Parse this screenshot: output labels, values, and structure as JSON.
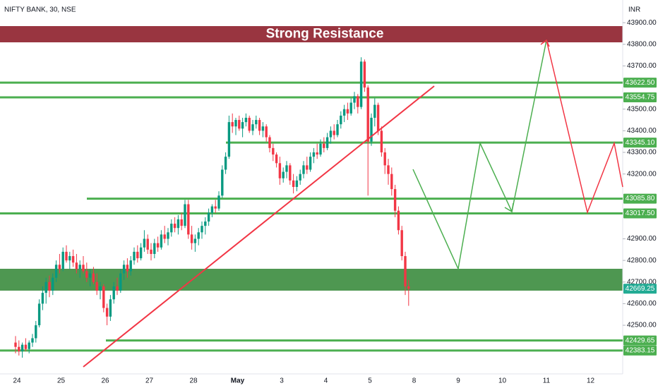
{
  "chart_data": {
    "type": "candlestick",
    "title": "NIFTY BANK, 30, NSE",
    "currency": "INR",
    "resistance_label": "Strong Resistance",
    "up_color": "#089981",
    "down_color": "#f23645",
    "level_color": "#4caf50",
    "last_color": "#22ab94",
    "ylim": [
      42275,
      44005
    ],
    "yticks": [
      {
        "value": 43900,
        "label": "43900.00"
      },
      {
        "value": 43800,
        "label": "43800.00"
      },
      {
        "value": 43700,
        "label": "43700.00"
      },
      {
        "value": 43500,
        "label": "43500.00"
      },
      {
        "value": 43400,
        "label": "43400.00"
      },
      {
        "value": 43300,
        "label": "43300.00"
      },
      {
        "value": 43200,
        "label": "43200.00"
      },
      {
        "value": 42900,
        "label": "42900.00"
      },
      {
        "value": 42800,
        "label": "42800.00"
      },
      {
        "value": 42700,
        "label": "42700.00"
      },
      {
        "value": 42600,
        "label": "42600.00"
      },
      {
        "value": 42500,
        "label": "42500.00"
      }
    ],
    "x_labels": [
      "24",
      "25",
      "26",
      "27",
      "28",
      "May",
      "3",
      "4",
      "5",
      "8",
      "9",
      "10",
      "11",
      "12"
    ],
    "levels": [
      {
        "value": 43622.5,
        "label": "43622.50"
      },
      {
        "value": 43554.75,
        "label": "43554.75"
      },
      {
        "value": 43345.1,
        "label": "43345.10"
      },
      {
        "value": 43085.8,
        "label": "43085.80"
      },
      {
        "value": 43017.5,
        "label": "43017.50"
      },
      {
        "value": 42429.65,
        "label": "42429.65"
      },
      {
        "value": 42383.15,
        "label": "42383.15"
      }
    ],
    "candles": [
      [
        42420,
        42450,
        42370,
        42400
      ],
      [
        42400,
        42430,
        42360,
        42380
      ],
      [
        42380,
        42420,
        42350,
        42410
      ],
      [
        42410,
        42440,
        42380,
        42390
      ],
      [
        42390,
        42430,
        42370,
        42420
      ],
      [
        42420,
        42460,
        42400,
        42440
      ],
      [
        42440,
        42520,
        42420,
        42500
      ],
      [
        42500,
        42620,
        42490,
        42600
      ],
      [
        42600,
        42680,
        42570,
        42650
      ],
      [
        42650,
        42720,
        42600,
        42700
      ],
      [
        42700,
        42730,
        42630,
        42660
      ],
      [
        42660,
        42740,
        42640,
        42720
      ],
      [
        42720,
        42800,
        42700,
        42780
      ],
      [
        42780,
        42830,
        42740,
        42760
      ],
      [
        42760,
        42860,
        42750,
        42840
      ],
      [
        42840,
        42870,
        42790,
        42800
      ],
      [
        42800,
        42840,
        42760,
        42820
      ],
      [
        42820,
        42850,
        42770,
        42790
      ],
      [
        42790,
        42830,
        42740,
        42760
      ],
      [
        42760,
        42800,
        42720,
        42780
      ],
      [
        42780,
        42820,
        42740,
        42750
      ],
      [
        42750,
        42790,
        42700,
        42720
      ],
      [
        42720,
        42760,
        42680,
        42740
      ],
      [
        42740,
        42770,
        42690,
        42700
      ],
      [
        42700,
        42740,
        42640,
        42660
      ],
      [
        42660,
        42700,
        42620,
        42680
      ],
      [
        42680,
        42690,
        42560,
        42580
      ],
      [
        42580,
        42600,
        42500,
        42540
      ],
      [
        42540,
        42640,
        42520,
        42620
      ],
      [
        42620,
        42700,
        42600,
        42680
      ],
      [
        42680,
        42720,
        42640,
        42660
      ],
      [
        42660,
        42760,
        42650,
        42740
      ],
      [
        42740,
        42800,
        42710,
        42780
      ],
      [
        42780,
        42810,
        42720,
        42750
      ],
      [
        42750,
        42820,
        42730,
        42800
      ],
      [
        42800,
        42860,
        42780,
        42840
      ],
      [
        42840,
        42870,
        42790,
        42810
      ],
      [
        42810,
        42880,
        42800,
        42860
      ],
      [
        42860,
        42940,
        42840,
        42900
      ],
      [
        42900,
        42920,
        42830,
        42850
      ],
      [
        42850,
        42880,
        42800,
        42830
      ],
      [
        42830,
        42900,
        42810,
        42880
      ],
      [
        42880,
        42910,
        42840,
        42860
      ],
      [
        42860,
        42940,
        42850,
        42920
      ],
      [
        42920,
        42960,
        42880,
        42900
      ],
      [
        42900,
        42950,
        42870,
        42930
      ],
      [
        42930,
        42990,
        42910,
        42970
      ],
      [
        42970,
        43000,
        42930,
        42950
      ],
      [
        42950,
        43010,
        42920,
        42990
      ],
      [
        42990,
        43020,
        42940,
        42960
      ],
      [
        42960,
        43080,
        42950,
        43060
      ],
      [
        43060,
        43080,
        42900,
        42920
      ],
      [
        42920,
        42960,
        42850,
        42880
      ],
      [
        42880,
        42920,
        42840,
        42900
      ],
      [
        42900,
        42950,
        42870,
        42930
      ],
      [
        42930,
        42980,
        42900,
        42960
      ],
      [
        42960,
        43000,
        42920,
        42980
      ],
      [
        42980,
        43040,
        42960,
        43020
      ],
      [
        43020,
        43060,
        43000,
        43050
      ],
      [
        43050,
        43080,
        43020,
        43040
      ],
      [
        43040,
        43120,
        43030,
        43100
      ],
      [
        43100,
        43240,
        43090,
        43220
      ],
      [
        43220,
        43300,
        43200,
        43280
      ],
      [
        43280,
        43470,
        43270,
        43440
      ],
      [
        43440,
        43480,
        43390,
        43420
      ],
      [
        43420,
        43460,
        43380,
        43450
      ],
      [
        43450,
        43470,
        43400,
        43410
      ],
      [
        43410,
        43460,
        43370,
        43440
      ],
      [
        43440,
        43480,
        43420,
        43460
      ],
      [
        43460,
        43470,
        43390,
        43400
      ],
      [
        43400,
        43450,
        43380,
        43430
      ],
      [
        43430,
        43470,
        43410,
        43450
      ],
      [
        43450,
        43460,
        43380,
        43400
      ],
      [
        43400,
        43440,
        43370,
        43420
      ],
      [
        43420,
        43430,
        43350,
        43370
      ],
      [
        43370,
        43380,
        43300,
        43320
      ],
      [
        43320,
        43340,
        43260,
        43290
      ],
      [
        43290,
        43300,
        43230,
        43250
      ],
      [
        43250,
        43280,
        43150,
        43180
      ],
      [
        43180,
        43230,
        43160,
        43210
      ],
      [
        43210,
        43260,
        43180,
        43240
      ],
      [
        43240,
        43250,
        43150,
        43170
      ],
      [
        43170,
        43200,
        43110,
        43140
      ],
      [
        43140,
        43190,
        43120,
        43170
      ],
      [
        43170,
        43220,
        43150,
        43200
      ],
      [
        43200,
        43260,
        43180,
        43240
      ],
      [
        43240,
        43280,
        43200,
        43220
      ],
      [
        43220,
        43300,
        43210,
        43280
      ],
      [
        43280,
        43320,
        43250,
        43300
      ],
      [
        43300,
        43340,
        43270,
        43290
      ],
      [
        43290,
        43360,
        43280,
        43340
      ],
      [
        43340,
        43370,
        43300,
        43320
      ],
      [
        43320,
        43390,
        43310,
        43370
      ],
      [
        43370,
        43420,
        43340,
        43400
      ],
      [
        43400,
        43430,
        43360,
        43380
      ],
      [
        43380,
        43450,
        43370,
        43430
      ],
      [
        43430,
        43490,
        43410,
        43470
      ],
      [
        43470,
        43520,
        43440,
        43500
      ],
      [
        43500,
        43530,
        43450,
        43480
      ],
      [
        43480,
        43550,
        43470,
        43530
      ],
      [
        43530,
        43580,
        43500,
        43560
      ],
      [
        43560,
        43570,
        43480,
        43510
      ],
      [
        43510,
        43740,
        43500,
        43720
      ],
      [
        43720,
        43730,
        43580,
        43600
      ],
      [
        43600,
        43610,
        43100,
        43350
      ],
      [
        43350,
        43480,
        43330,
        43460
      ],
      [
        43460,
        43550,
        43420,
        43520
      ],
      [
        43520,
        43530,
        43380,
        43400
      ],
      [
        43400,
        43420,
        43280,
        43300
      ],
      [
        43300,
        43320,
        43200,
        43240
      ],
      [
        43240,
        43270,
        43150,
        43200
      ],
      [
        43200,
        43230,
        43100,
        43130
      ],
      [
        43130,
        43150,
        43000,
        43030
      ],
      [
        43030,
        43050,
        42920,
        42940
      ],
      [
        42940,
        42960,
        42800,
        42820
      ],
      [
        42820,
        42840,
        42640,
        42680
      ],
      [
        42680,
        42710,
        42590,
        42669.25
      ]
    ]
  }
}
